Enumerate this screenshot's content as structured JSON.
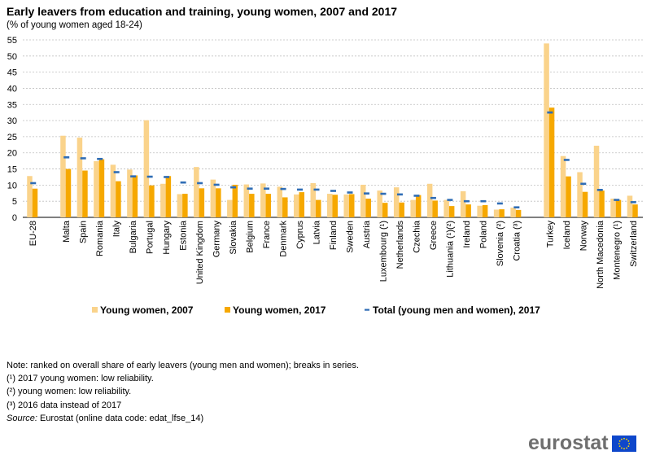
{
  "header": {
    "title": "Early leavers from education and training, young women, 2007 and 2017",
    "subtitle": "(% of young women  aged 18-24)"
  },
  "notes": {
    "lines": [
      "Note: ranked on overall share of early leavers (young men and women); breaks in series.",
      "(¹) 2017 young women: low reliability.",
      "(²) young women: low reliability.",
      "(³) 2016 data instead of 2017"
    ],
    "source_label": "Source:",
    "source_text": " Eurostat (online data code: edat_lfse_14)"
  },
  "logo": {
    "text": "eurostat"
  },
  "colors": {
    "women2007": "#fad38b",
    "women2017": "#f6a800",
    "total2017": "#2f6db5",
    "grid": "#bfbfbf"
  },
  "chart_data": {
    "type": "bar",
    "ylim": [
      0,
      55
    ],
    "yticks": [
      0,
      5,
      10,
      15,
      20,
      25,
      30,
      35,
      40,
      45,
      50,
      55
    ],
    "grid": true,
    "legend_position": "bottom",
    "categories": [
      "EU-28",
      "Malta",
      "Spain",
      "Romania",
      "Italy",
      "Bulgaria",
      "Portugal",
      "Hungary",
      "Estonia",
      "United Kingdom",
      "Germany",
      "Slovakia",
      "Belgium",
      "France",
      "Denmark",
      "Cyprus",
      "Latvia",
      "Finland",
      "Sweden",
      "Austria",
      "Luxembourg (¹)",
      "Netherlands",
      "Czechia",
      "Greece",
      "Lithuania (¹)(²)",
      "Ireland",
      "Poland",
      "Slovenia (²)",
      "Croatia (³)",
      "Turkey",
      "Iceland",
      "Norway",
      "North Macedonia",
      "Montenegro (¹)",
      "Switzerland"
    ],
    "groups_gap_after": [
      "EU-28",
      "Croatia (³)"
    ],
    "series": [
      {
        "name": "Young women, 2007",
        "kind": "bar",
        "values": [
          12.8,
          25.3,
          24.7,
          17.4,
          16.3,
          14.8,
          30.1,
          10.4,
          7.2,
          15.6,
          11.7,
          5.4,
          10.2,
          10.5,
          9.5,
          7.1,
          10.6,
          7.3,
          7.1,
          10.1,
          8.3,
          9.3,
          5.4,
          10.4,
          5.4,
          8.1,
          3.6,
          2.4,
          3.0,
          53.9,
          19.0,
          14.0,
          22.2,
          5.8,
          6.7
        ]
      },
      {
        "name": "Young women, 2017",
        "kind": "bar",
        "values": [
          8.9,
          15.0,
          14.5,
          18.0,
          11.2,
          13.0,
          9.9,
          12.8,
          7.3,
          9.0,
          9.0,
          10.1,
          7.3,
          7.3,
          6.2,
          7.8,
          5.4,
          7.0,
          7.2,
          5.8,
          4.5,
          4.6,
          6.9,
          5.2,
          3.5,
          4.0,
          3.8,
          2.5,
          2.3,
          34.0,
          12.7,
          7.9,
          8.3,
          5.4,
          4.0
        ]
      },
      {
        "name": "Total (young men and women), 2017",
        "kind": "marker",
        "values": [
          10.6,
          18.6,
          18.3,
          18.1,
          14.0,
          12.7,
          12.6,
          12.5,
          10.8,
          10.6,
          10.1,
          9.3,
          8.9,
          8.9,
          8.8,
          8.6,
          8.6,
          8.2,
          7.7,
          7.4,
          7.3,
          7.1,
          6.7,
          6.0,
          5.4,
          5.0,
          5.0,
          4.3,
          3.1,
          32.5,
          17.8,
          10.4,
          8.5,
          5.4,
          4.7
        ]
      }
    ]
  }
}
